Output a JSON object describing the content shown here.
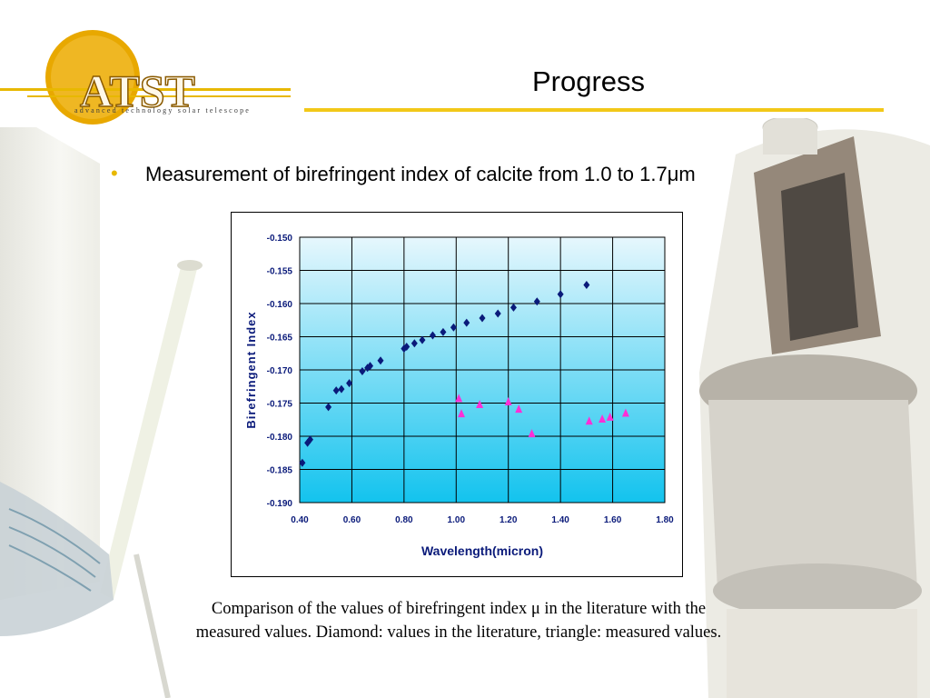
{
  "header": {
    "logo_text": "ATST",
    "logo_tagline": "advanced technology solar telescope",
    "title": "Progress"
  },
  "bullet": {
    "marker": "•",
    "text": "Measurement of birefringent index of calcite from 1.0 to 1.7μm"
  },
  "caption": {
    "line1": "Comparison of the values of birefringent index μ in the literature with the",
    "line2": "measured values. Diamond: values in the literature, triangle: measured values."
  },
  "colors": {
    "accent_yellow": "#f2c818",
    "logo_orange": "#e8a800",
    "plot_top": "#e6f7fd",
    "plot_bottom": "#13c3ee",
    "diamond": "#0a1a7a",
    "triangle": "#ff2fd6",
    "axis_text": "#0a1a7a"
  },
  "chart_data": {
    "type": "scatter",
    "title": "",
    "xlabel": "Wavelength(micron)",
    "ylabel": "Birefringent Index",
    "xlim": [
      0.4,
      1.8
    ],
    "ylim": [
      -0.19,
      -0.15
    ],
    "x_ticks": [
      "0.40",
      "0.60",
      "0.80",
      "1.00",
      "1.20",
      "1.40",
      "1.60",
      "1.80"
    ],
    "y_ticks": [
      "-0.150",
      "-0.155",
      "-0.160",
      "-0.165",
      "-0.170",
      "-0.175",
      "-0.180",
      "-0.185",
      "-0.190"
    ],
    "grid": true,
    "legend": "none",
    "series": [
      {
        "marker": "diamond",
        "points": [
          [
            0.41,
            -0.184
          ],
          [
            0.43,
            -0.181
          ],
          [
            0.44,
            -0.1805
          ],
          [
            0.51,
            -0.1756
          ],
          [
            0.54,
            -0.1731
          ],
          [
            0.56,
            -0.1729
          ],
          [
            0.59,
            -0.172
          ],
          [
            0.64,
            -0.1702
          ],
          [
            0.66,
            -0.1697
          ],
          [
            0.67,
            -0.1694
          ],
          [
            0.71,
            -0.1686
          ],
          [
            0.8,
            -0.1668
          ],
          [
            0.81,
            -0.1665
          ],
          [
            0.84,
            -0.166
          ],
          [
            0.87,
            -0.1655
          ],
          [
            0.91,
            -0.1648
          ],
          [
            0.95,
            -0.1643
          ],
          [
            0.99,
            -0.1636
          ],
          [
            1.04,
            -0.1629
          ],
          [
            1.1,
            -0.1622
          ],
          [
            1.16,
            -0.1615
          ],
          [
            1.22,
            -0.1606
          ],
          [
            1.31,
            -0.1597
          ],
          [
            1.4,
            -0.1586
          ],
          [
            1.5,
            -0.1572
          ]
        ]
      },
      {
        "marker": "triangle",
        "points": [
          [
            1.01,
            -0.1743
          ],
          [
            1.02,
            -0.1766
          ],
          [
            1.09,
            -0.1752
          ],
          [
            1.2,
            -0.1748
          ],
          [
            1.24,
            -0.1759
          ],
          [
            1.29,
            -0.1796
          ],
          [
            1.51,
            -0.1777
          ],
          [
            1.56,
            -0.1774
          ],
          [
            1.59,
            -0.1771
          ],
          [
            1.65,
            -0.1765
          ]
        ]
      }
    ]
  }
}
